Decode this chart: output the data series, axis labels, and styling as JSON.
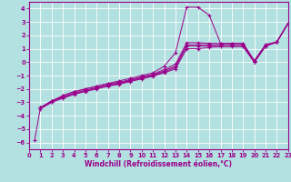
{
  "xlabel": "Windchill (Refroidissement éolien,°C)",
  "background_color": "#b3e0e0",
  "line_color": "#9b008b",
  "grid_color": "#ffffff",
  "xlim": [
    0,
    23
  ],
  "ylim": [
    -6.5,
    4.5
  ],
  "xticks": [
    0,
    1,
    2,
    3,
    4,
    5,
    6,
    7,
    8,
    9,
    10,
    11,
    12,
    13,
    14,
    15,
    16,
    17,
    18,
    19,
    20,
    21,
    22,
    23
  ],
  "yticks": [
    -6,
    -5,
    -4,
    -3,
    -2,
    -1,
    0,
    1,
    2,
    3,
    4
  ],
  "lines": [
    [
      0.5,
      -5.8,
      1,
      -3.4,
      2,
      -3.0,
      3,
      -2.5,
      4,
      -2.2,
      5,
      -2.0,
      6,
      -1.8,
      7,
      -1.6,
      8,
      -1.4,
      9,
      -1.2,
      10,
      -1.0,
      11,
      -0.8,
      12,
      -0.3,
      13,
      0.7,
      14,
      4.1,
      15,
      4.1,
      16,
      3.5,
      17,
      1.4,
      18,
      1.4,
      19,
      1.4,
      20,
      0.1,
      21,
      1.3,
      22,
      1.5,
      23,
      2.9
    ],
    [
      1,
      -3.4,
      2,
      -2.9,
      3,
      -2.5,
      4,
      -2.2,
      5,
      -2.0,
      6,
      -1.8,
      7,
      -1.6,
      8,
      -1.5,
      9,
      -1.3,
      10,
      -1.1,
      11,
      -0.9,
      12,
      -0.55,
      13,
      -0.15,
      14,
      1.45,
      15,
      1.45,
      16,
      1.4,
      17,
      1.4,
      18,
      1.4,
      19,
      1.4,
      20,
      0.1,
      21,
      1.3,
      22,
      1.5,
      23,
      2.9
    ],
    [
      1,
      -3.4,
      2,
      -2.9,
      3,
      -2.6,
      4,
      -2.3,
      5,
      -2.1,
      6,
      -1.9,
      7,
      -1.7,
      8,
      -1.55,
      9,
      -1.35,
      10,
      -1.15,
      11,
      -0.95,
      12,
      -0.65,
      13,
      -0.3,
      14,
      1.3,
      15,
      1.3,
      16,
      1.3,
      17,
      1.3,
      18,
      1.3,
      19,
      1.3,
      20,
      0.0,
      21,
      1.2,
      22,
      1.5,
      23,
      2.9
    ],
    [
      1,
      -3.4,
      2,
      -2.9,
      3,
      -2.65,
      4,
      -2.35,
      5,
      -2.15,
      6,
      -1.95,
      7,
      -1.75,
      8,
      -1.6,
      9,
      -1.4,
      10,
      -1.2,
      11,
      -1.0,
      12,
      -0.72,
      13,
      -0.4,
      14,
      1.2,
      15,
      1.2,
      16,
      1.2,
      17,
      1.25,
      18,
      1.25,
      19,
      1.25,
      20,
      0.0,
      21,
      1.2,
      22,
      1.5,
      23,
      2.9
    ],
    [
      1,
      -3.5,
      2,
      -3.0,
      3,
      -2.7,
      4,
      -2.4,
      5,
      -2.2,
      6,
      -2.0,
      7,
      -1.8,
      8,
      -1.65,
      9,
      -1.45,
      10,
      -1.25,
      11,
      -1.05,
      12,
      -0.8,
      13,
      -0.5,
      14,
      1.0,
      15,
      1.0,
      16,
      1.1,
      17,
      1.15,
      18,
      1.15,
      19,
      1.15,
      20,
      0.0,
      21,
      1.2,
      22,
      1.5,
      23,
      2.9
    ]
  ]
}
